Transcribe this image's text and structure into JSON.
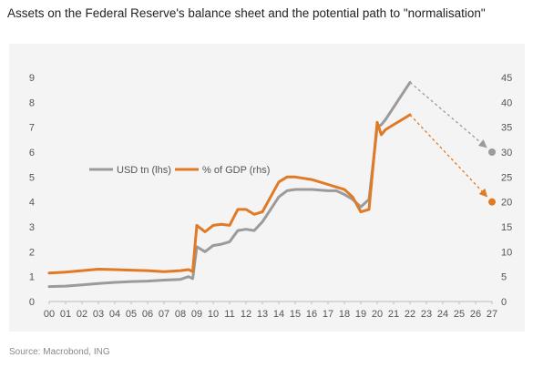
{
  "title": "Assets on the Federal Reserve's balance sheet and the potential path to \"normalisation\"",
  "source": "Source: Macrobond, ING",
  "colors": {
    "usd": "#9b9b9b",
    "gdp": "#e07a25",
    "panel": "#f4f4f4"
  },
  "chart_data": {
    "type": "line",
    "title": "Assets on the Federal Reserve's balance sheet and the potential path to \"normalisation\"",
    "x_ticks": [
      "00",
      "01",
      "02",
      "03",
      "04",
      "05",
      "06",
      "07",
      "08",
      "09",
      "10",
      "11",
      "12",
      "13",
      "14",
      "15",
      "16",
      "17",
      "18",
      "19",
      "20",
      "21",
      "22",
      "23",
      "24",
      "25",
      "26",
      "27"
    ],
    "y_left": {
      "ticks": [
        0,
        1,
        2,
        3,
        4,
        5,
        6,
        7,
        8,
        9
      ],
      "range": [
        0,
        9
      ]
    },
    "y_right": {
      "ticks": [
        0,
        5,
        10,
        15,
        20,
        25,
        30,
        35,
        40,
        45
      ],
      "range": [
        0,
        45
      ]
    },
    "legend": {
      "placement": "middle-left",
      "entries": [
        "USD tn (lhs)",
        "% of GDP (rhs)"
      ]
    },
    "grid": false,
    "series": [
      {
        "name": "USD tn (lhs)",
        "axis": "left",
        "x": [
          2000,
          2001,
          2002,
          2003,
          2004,
          2005,
          2006,
          2007,
          2008,
          2008.5,
          2008.75,
          2009,
          2009.5,
          2010,
          2010.5,
          2011,
          2011.5,
          2012,
          2012.5,
          2013,
          2013.5,
          2014,
          2014.5,
          2015,
          2016,
          2017,
          2017.5,
          2018,
          2018.5,
          2019,
          2019.5,
          2020,
          2020.25,
          2020.5,
          2021,
          2021.5,
          2022
        ],
        "values": [
          0.6,
          0.62,
          0.67,
          0.72,
          0.77,
          0.8,
          0.82,
          0.86,
          0.89,
          1.0,
          0.92,
          2.2,
          2.0,
          2.25,
          2.3,
          2.4,
          2.85,
          2.9,
          2.85,
          3.2,
          3.7,
          4.2,
          4.45,
          4.5,
          4.5,
          4.45,
          4.45,
          4.3,
          4.1,
          3.8,
          4.1,
          7.0,
          7.1,
          7.3,
          7.8,
          8.3,
          8.8
        ]
      },
      {
        "name": "% of GDP (rhs)",
        "axis": "right",
        "x": [
          2000,
          2001,
          2002,
          2003,
          2004,
          2005,
          2006,
          2007,
          2008,
          2008.5,
          2008.75,
          2009,
          2009.5,
          2010,
          2010.5,
          2011,
          2011.5,
          2012,
          2012.5,
          2013,
          2013.5,
          2014,
          2014.5,
          2015,
          2016,
          2017,
          2017.5,
          2018,
          2018.5,
          2019,
          2019.5,
          2020,
          2020.25,
          2020.5,
          2021,
          2021.5,
          2022
        ],
        "values": [
          5.7,
          5.9,
          6.2,
          6.5,
          6.4,
          6.3,
          6.2,
          6.0,
          6.2,
          6.4,
          6.0,
          15.3,
          14.0,
          15.3,
          15.5,
          15.3,
          18.5,
          18.5,
          17.5,
          18.0,
          21.0,
          24.0,
          25.0,
          25.0,
          24.5,
          23.5,
          23.0,
          22.5,
          21.0,
          18.0,
          18.5,
          36.0,
          33.5,
          34.5,
          35.5,
          36.5,
          37.5
        ]
      }
    ],
    "projections": [
      {
        "name": "USD tn (lhs)",
        "axis": "left",
        "from": [
          2022,
          8.8
        ],
        "to": [
          2027,
          6.0
        ]
      },
      {
        "name": "% of GDP (rhs)",
        "axis": "right",
        "from": [
          2022,
          37.5
        ],
        "to": [
          2027,
          20.0
        ]
      }
    ]
  }
}
